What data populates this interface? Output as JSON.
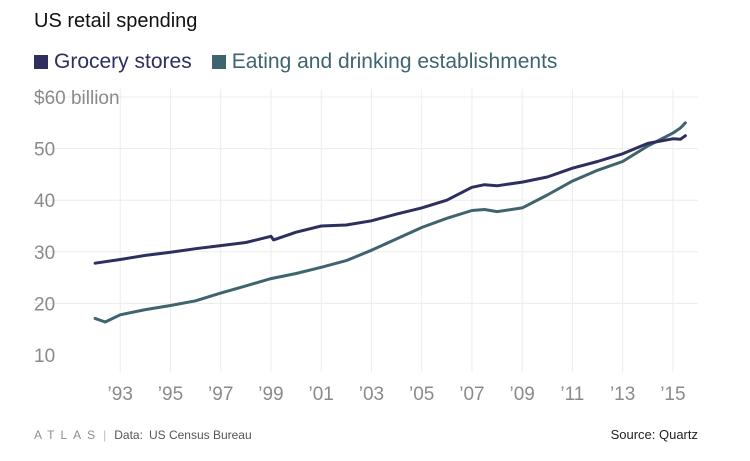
{
  "title": "US retail spending",
  "legend": [
    {
      "label": "Grocery stores",
      "color": "#2e2f5e"
    },
    {
      "label": "Eating and drinking establishments",
      "color": "#3f6470"
    }
  ],
  "footer": {
    "logo": "ATLAS",
    "data_label": "Data:",
    "data_source": "US Census Bureau",
    "source": "Source: Quartz"
  },
  "chart_data": {
    "type": "line",
    "title": "US retail spending",
    "y_unit_label": "$60 billion",
    "ylim": [
      10,
      60
    ],
    "yticks": [
      10,
      20,
      30,
      40,
      50,
      60
    ],
    "ytick_labels": [
      "10",
      "20",
      "30",
      "40",
      "50",
      "$60 billion"
    ],
    "xlim": [
      1991.0,
      2016.0
    ],
    "xticks": [
      1993,
      1995,
      1997,
      1999,
      2001,
      2003,
      2005,
      2007,
      2009,
      2011,
      2013,
      2015
    ],
    "xtick_labels": [
      "’93",
      "’95",
      "’97",
      "’99",
      "’01",
      "’03",
      "’05",
      "’07",
      "’09",
      "’11",
      "’13",
      "’15"
    ],
    "grid": true,
    "legend_position": "top-left",
    "series": [
      {
        "name": "Grocery stores",
        "color": "#2e2f5e",
        "x": [
          1992.0,
          1993.0,
          1994.0,
          1995.0,
          1996.0,
          1997.0,
          1998.0,
          1999.0,
          1999.1,
          2000.0,
          2001.0,
          2002.0,
          2003.0,
          2004.0,
          2005.0,
          2006.0,
          2007.0,
          2007.5,
          2008.0,
          2009.0,
          2010.0,
          2011.0,
          2012.0,
          2013.0,
          2014.0,
          2015.0,
          2015.3,
          2015.5
        ],
        "y": [
          27.8,
          28.5,
          29.3,
          29.9,
          30.6,
          31.2,
          31.8,
          33.0,
          32.3,
          33.8,
          35.0,
          35.2,
          36.0,
          37.3,
          38.5,
          40.0,
          42.5,
          43.0,
          42.8,
          43.5,
          44.5,
          46.2,
          47.5,
          49.0,
          51.0,
          51.9,
          51.8,
          52.5
        ]
      },
      {
        "name": "Eating and drinking establishments",
        "color": "#3f6470",
        "x": [
          1992.0,
          1992.4,
          1993.0,
          1994.0,
          1995.0,
          1996.0,
          1997.0,
          1998.0,
          1999.0,
          2000.0,
          2001.0,
          2002.0,
          2003.0,
          2004.0,
          2005.0,
          2006.0,
          2007.0,
          2007.5,
          2008.0,
          2009.0,
          2010.0,
          2011.0,
          2012.0,
          2013.0,
          2014.0,
          2015.0,
          2015.3,
          2015.5
        ],
        "y": [
          17.1,
          16.4,
          17.8,
          18.8,
          19.6,
          20.5,
          22.0,
          23.4,
          24.8,
          25.8,
          27.0,
          28.3,
          30.3,
          32.5,
          34.7,
          36.5,
          38.0,
          38.2,
          37.8,
          38.5,
          41.0,
          43.7,
          45.8,
          47.5,
          50.5,
          53.0,
          54.0,
          55.0
        ]
      }
    ]
  }
}
